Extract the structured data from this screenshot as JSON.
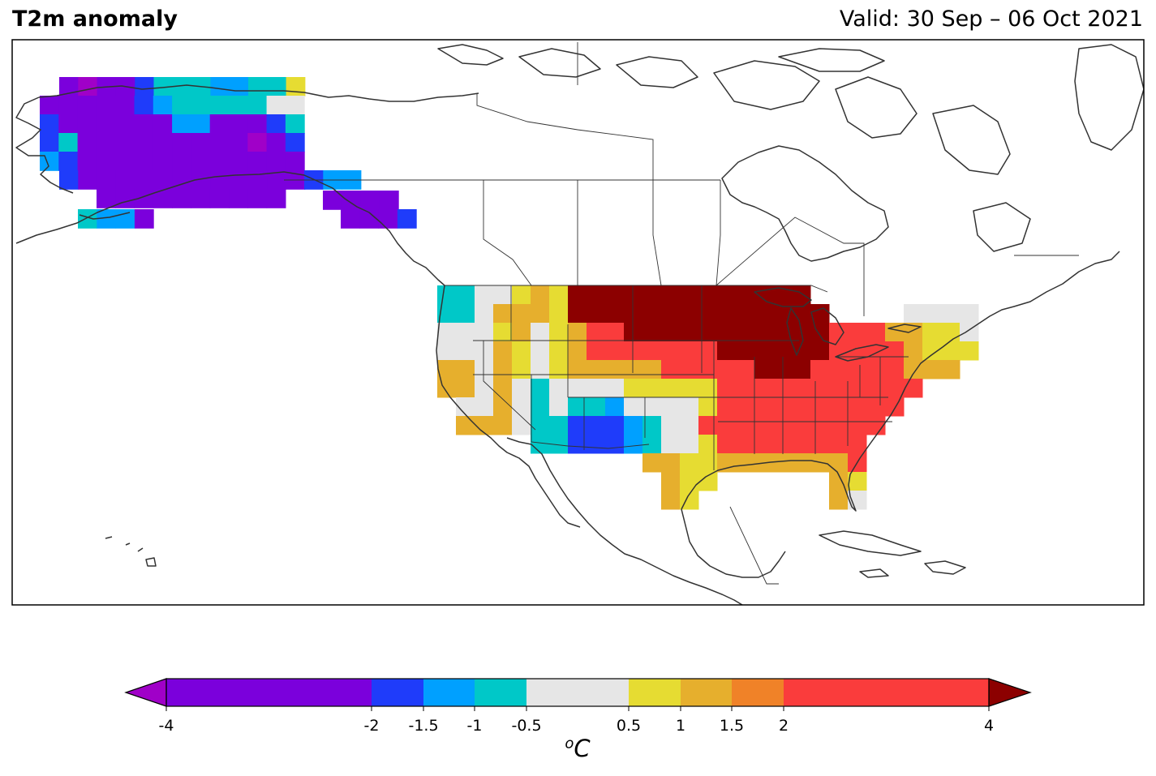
{
  "header": {
    "title": "T2m anomaly",
    "valid": "Valid: 30 Sep – 06 Oct 2021"
  },
  "colorbar": {
    "unit_base": "C",
    "unit_sup": "o",
    "ticks": [
      "-4",
      "-2",
      "-1.5",
      "-1",
      "-0.5",
      "0.5",
      "1",
      "1.5",
      "2",
      "4"
    ],
    "bins": [
      {
        "from": -4,
        "to": -2,
        "color": "#7b00dc"
      },
      {
        "from": -2,
        "to": -1.5,
        "color": "#1f3cfa"
      },
      {
        "from": -1.5,
        "to": -1,
        "color": "#00a0ff"
      },
      {
        "from": -1,
        "to": -0.5,
        "color": "#00c8c8"
      },
      {
        "from": -0.5,
        "to": 0.5,
        "color": "#e6e6e6"
      },
      {
        "from": 0.5,
        "to": 1,
        "color": "#e6dc32"
      },
      {
        "from": 1,
        "to": 1.5,
        "color": "#e6af2d"
      },
      {
        "from": 1.5,
        "to": 2,
        "color": "#f08228"
      },
      {
        "from": 2,
        "to": 4,
        "color": "#fa3c3c"
      }
    ],
    "under_color": "#a000c8",
    "over_color": "#8c0000"
  },
  "map": {
    "region": "North America",
    "projection": "Plate Carrée",
    "field": "2 m temperature anomaly",
    "regions_shown": [
      {
        "name": "Alaska",
        "anomaly": "below -2 (cold), west coast cells near -1"
      },
      {
        "name": "Alaska panhandle",
        "anomaly": "below -2"
      },
      {
        "name": "Northern Plains and Upper Midwest",
        "anomaly": "above 4 (much warmer)"
      },
      {
        "name": "Central and Eastern US",
        "anomaly": "+2 to +4"
      },
      {
        "name": "Southern Rockies / New Mexico",
        "anomaly": "-2 to -1"
      },
      {
        "name": "Pacific Northwest coast",
        "anomaly": "-1 to -0.5"
      },
      {
        "name": "Texas Gulf coast",
        "anomaly": "+0.5 to +1"
      },
      {
        "name": "South Florida",
        "anomaly": "-0.5 to +0.5"
      }
    ]
  }
}
